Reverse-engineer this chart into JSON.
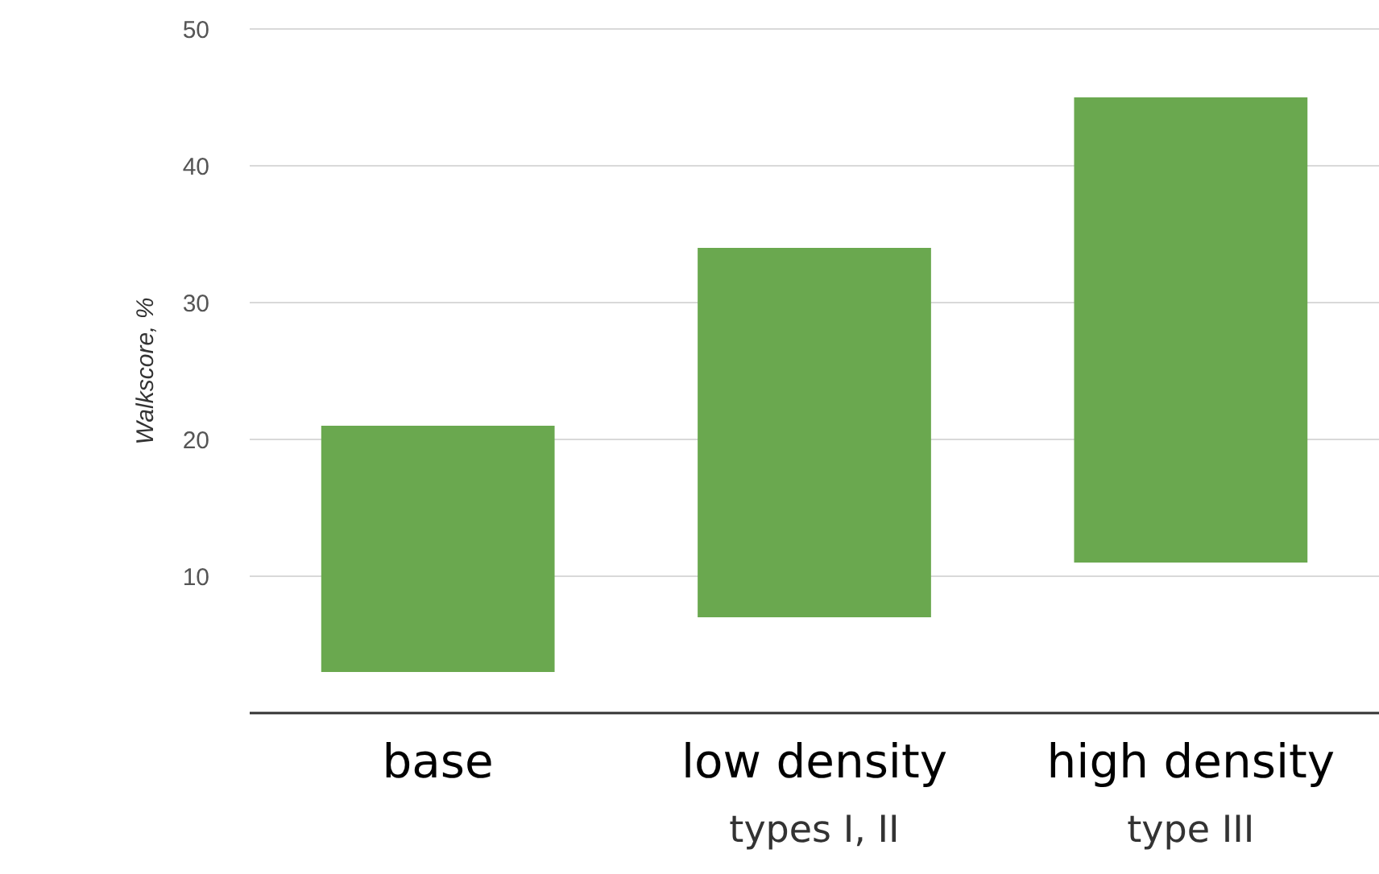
{
  "chart_data": {
    "type": "bar",
    "ylabel": "Walkscore, %",
    "categories": [
      "base",
      "low density\ntypes I, II",
      "high density\ntype III"
    ],
    "values": [
      18,
      27,
      34
    ],
    "base": [
      3,
      7,
      11
    ],
    "color": "#6aa84f",
    "ylim": [
      0,
      50
    ],
    "yticks": [
      10,
      20,
      30,
      40,
      50
    ],
    "grid": "y"
  }
}
